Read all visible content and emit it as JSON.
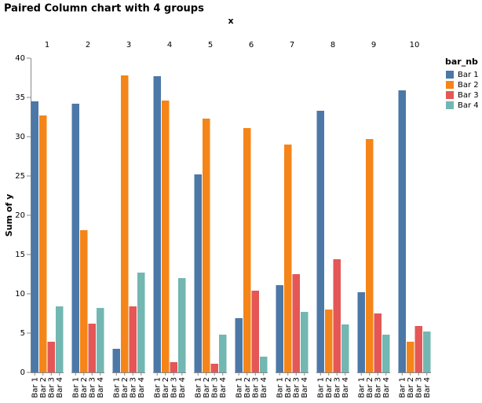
{
  "chart_data": {
    "type": "bar",
    "title": "Paired Column chart with 4 groups",
    "column_title": "x",
    "ylabel": "Sum of y",
    "legend_title": "bar_nb",
    "legend": "right",
    "grid": false,
    "categories": [
      "1",
      "2",
      "3",
      "4",
      "5",
      "6",
      "7",
      "8",
      "9",
      "10"
    ],
    "series": [
      {
        "name": "Bar 1",
        "color": "#4c78a8",
        "values": [
          34.5,
          34.2,
          3.0,
          37.7,
          25.2,
          6.9,
          11.1,
          33.3,
          10.2,
          35.9
        ]
      },
      {
        "name": "Bar 2",
        "color": "#f58518",
        "values": [
          32.7,
          18.1,
          37.8,
          34.6,
          32.3,
          31.1,
          29.0,
          8.0,
          29.7,
          3.9
        ]
      },
      {
        "name": "Bar 3",
        "color": "#e45756",
        "values": [
          3.9,
          6.2,
          8.4,
          1.3,
          1.1,
          10.4,
          12.5,
          14.4,
          7.5,
          5.9
        ]
      },
      {
        "name": "Bar 4",
        "color": "#72b7b2",
        "values": [
          8.4,
          8.2,
          12.7,
          12.0,
          4.8,
          2.0,
          7.7,
          6.1,
          4.8,
          5.2
        ]
      }
    ],
    "ylim": [
      0,
      40
    ],
    "yticks": [
      0,
      5,
      10,
      15,
      20,
      25,
      30,
      35,
      40
    ]
  }
}
